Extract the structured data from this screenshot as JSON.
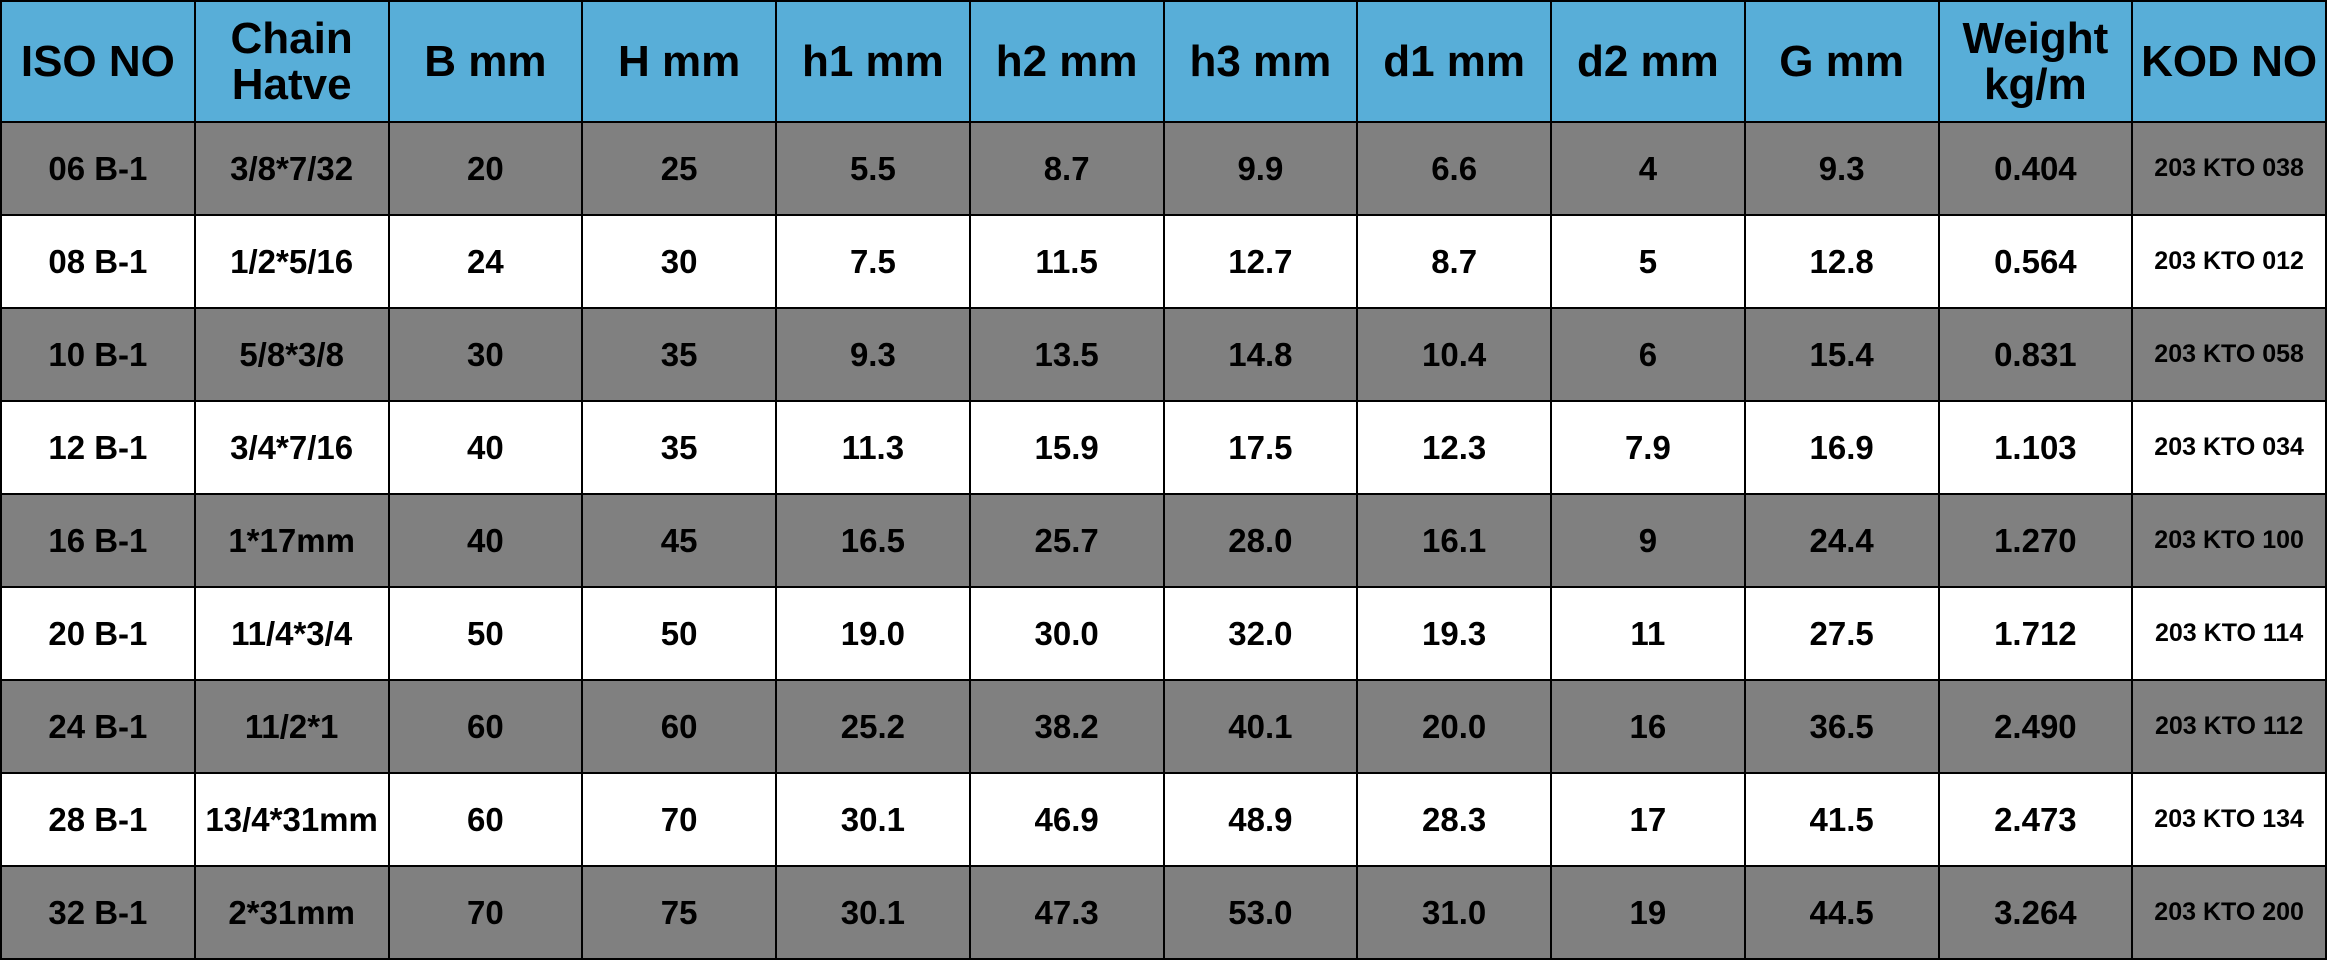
{
  "table": {
    "header": [
      "ISO NO",
      "Chain Hatve",
      "B mm",
      "H mm",
      "h1 mm",
      "h2 mm",
      "h3 mm",
      "d1 mm",
      "d2 mm",
      "G mm",
      "Weight kg/m",
      "KOD NO"
    ],
    "rows": [
      [
        "06 B-1",
        "3/8*7/32",
        "20",
        "25",
        "5.5",
        "8.7",
        "9.9",
        "6.6",
        "4",
        "9.3",
        "0.404",
        "203 KTO 038"
      ],
      [
        "08 B-1",
        "1/2*5/16",
        "24",
        "30",
        "7.5",
        "11.5",
        "12.7",
        "8.7",
        "5",
        "12.8",
        "0.564",
        "203 KTO 012"
      ],
      [
        "10 B-1",
        "5/8*3/8",
        "30",
        "35",
        "9.3",
        "13.5",
        "14.8",
        "10.4",
        "6",
        "15.4",
        "0.831",
        "203 KTO 058"
      ],
      [
        "12 B-1",
        "3/4*7/16",
        "40",
        "35",
        "11.3",
        "15.9",
        "17.5",
        "12.3",
        "7.9",
        "16.9",
        "1.103",
        "203 KTO 034"
      ],
      [
        "16 B-1",
        "1*17mm",
        "40",
        "45",
        "16.5",
        "25.7",
        "28.0",
        "16.1",
        "9",
        "24.4",
        "1.270",
        "203 KTO 100"
      ],
      [
        "20 B-1",
        "11/4*3/4",
        "50",
        "50",
        "19.0",
        "30.0",
        "32.0",
        "19.3",
        "11",
        "27.5",
        "1.712",
        "203 KTO 114"
      ],
      [
        "24 B-1",
        "11/2*1",
        "60",
        "60",
        "25.2",
        "38.2",
        "40.1",
        "20.0",
        "16",
        "36.5",
        "2.490",
        "203 KTO 112"
      ],
      [
        "28 B-1",
        "13/4*31mm",
        "60",
        "70",
        "30.1",
        "46.9",
        "48.9",
        "28.3",
        "17",
        "41.5",
        "2.473",
        "203 KTO 134"
      ],
      [
        "32 B-1",
        "2*31mm",
        "70",
        "75",
        "30.1",
        "47.3",
        "53.0",
        "31.0",
        "19",
        "44.5",
        "3.264",
        "203 KTO 200"
      ]
    ]
  }
}
